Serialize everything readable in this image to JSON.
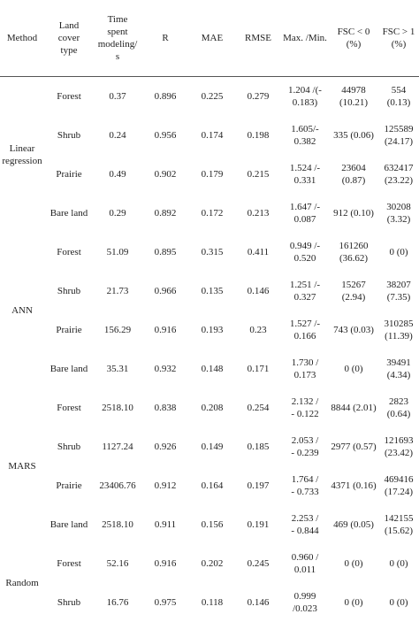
{
  "headers": {
    "method": "Method",
    "land_cover": [
      "Land",
      "cover",
      "type"
    ],
    "time": [
      "Time",
      "spent",
      "modeling/",
      "s"
    ],
    "r": "R",
    "mae": "MAE",
    "rmse": "RMSE",
    "maxmin": "Max. /Min.",
    "fsc_lt0": [
      "FSC < 0",
      "(%)"
    ],
    "fsc_gt1": [
      "FSC > 1",
      "(%)"
    ]
  },
  "groups": [
    {
      "method": [
        "Linear",
        "regression"
      ],
      "rows": [
        {
          "land": "Forest",
          "time": "0.37",
          "r": "0.896",
          "mae": "0.225",
          "rmse": "0.279",
          "maxmin": [
            "1.204 /(-",
            "0.183)"
          ],
          "fsc_lt0": [
            "44978",
            "(10.21)"
          ],
          "fsc_gt1": [
            "554 (0.13)"
          ]
        },
        {
          "land": "Shrub",
          "time": "0.24",
          "r": "0.956",
          "mae": "0.174",
          "rmse": "0.198",
          "maxmin": [
            "1.605/-",
            "0.382"
          ],
          "fsc_lt0": [
            "335 (0.06)"
          ],
          "fsc_gt1": [
            "125589",
            "(24.17)"
          ]
        },
        {
          "land": "Prairie",
          "time": "0.49",
          "r": "0.902",
          "mae": "0.179",
          "rmse": "0.215",
          "maxmin": [
            "1.524 /-",
            "0.331"
          ],
          "fsc_lt0": [
            "23604",
            "(0.87)"
          ],
          "fsc_gt1": [
            "632417",
            "(23.22)"
          ]
        },
        {
          "land": "Bare land",
          "time": "0.29",
          "r": "0.892",
          "mae": "0.172",
          "rmse": "0.213",
          "maxmin": [
            "1.647 /-",
            "0.087"
          ],
          "fsc_lt0": [
            "912 (0.10)"
          ],
          "fsc_gt1": [
            "30208",
            "(3.32)"
          ]
        }
      ]
    },
    {
      "method": [
        "ANN"
      ],
      "rows": [
        {
          "land": "Forest",
          "time": "51.09",
          "r": "0.895",
          "mae": "0.315",
          "rmse": "0.411",
          "maxmin": [
            "0.949 /-",
            "0.520"
          ],
          "fsc_lt0": [
            "161260",
            "(36.62)"
          ],
          "fsc_gt1": [
            "0 (0)"
          ]
        },
        {
          "land": "Shrub",
          "time": "21.73",
          "r": "0.966",
          "mae": "0.135",
          "rmse": "0.146",
          "maxmin": [
            "1.251 /-",
            "0.327"
          ],
          "fsc_lt0": [
            "15267",
            "(2.94)"
          ],
          "fsc_gt1": [
            "38207",
            "(7.35)"
          ]
        },
        {
          "land": "Prairie",
          "time": "156.29",
          "r": "0.916",
          "mae": "0.193",
          "rmse": "0.23",
          "maxmin": [
            "1.527 /-",
            "0.166"
          ],
          "fsc_lt0": [
            "743 (0.03)"
          ],
          "fsc_gt1": [
            "310285",
            "(11.39)"
          ]
        },
        {
          "land": "Bare land",
          "time": "35.31",
          "r": "0.932",
          "mae": "0.148",
          "rmse": "0.171",
          "maxmin": [
            "1.730 /",
            "0.173"
          ],
          "fsc_lt0": [
            "0 (0)"
          ],
          "fsc_gt1": [
            "39491",
            "(4.34)"
          ]
        }
      ]
    },
    {
      "method": [
        "MARS"
      ],
      "rows": [
        {
          "land": "Forest",
          "time": "2518.10",
          "r": "0.838",
          "mae": "0.208",
          "rmse": "0.254",
          "maxmin": [
            "2.132 /",
            "- 0.122"
          ],
          "fsc_lt0": [
            "8844 (2.01)"
          ],
          "fsc_gt1": [
            "2823 (0.64)"
          ]
        },
        {
          "land": "Shrub",
          "time": "1127.24",
          "r": "0.926",
          "mae": "0.149",
          "rmse": "0.185",
          "maxmin": [
            "2.053 /",
            "- 0.239"
          ],
          "fsc_lt0": [
            "2977 (0.57)"
          ],
          "fsc_gt1": [
            "121693",
            "(23.42)"
          ]
        },
        {
          "land": "Prairie",
          "time": "23406.76",
          "r": "0.912",
          "mae": "0.164",
          "rmse": "0.197",
          "maxmin": [
            "1.764 /",
            "- 0.733"
          ],
          "fsc_lt0": [
            "4371 (0.16)"
          ],
          "fsc_gt1": [
            "469416",
            "(17.24)"
          ]
        },
        {
          "land": "Bare land",
          "time": "2518.10",
          "r": "0.911",
          "mae": "0.156",
          "rmse": "0.191",
          "maxmin": [
            "2.253 /",
            "- 0.844"
          ],
          "fsc_lt0": [
            "469 (0.05)"
          ],
          "fsc_gt1": [
            "142155",
            "(15.62)"
          ]
        }
      ]
    },
    {
      "method": [
        "Random"
      ],
      "rows": [
        {
          "land": "Forest",
          "time": "52.16",
          "r": "0.916",
          "mae": "0.202",
          "rmse": "0.245",
          "maxmin": [
            "0.960 /",
            "0.011"
          ],
          "fsc_lt0": [
            "0 (0)"
          ],
          "fsc_gt1": [
            "0 (0)"
          ]
        },
        {
          "land": "Shrub",
          "time": "16.76",
          "r": "0.975",
          "mae": "0.118",
          "rmse": "0.146",
          "maxmin": [
            "0.999",
            "/0.023"
          ],
          "fsc_lt0": [
            "0 (0)"
          ],
          "fsc_gt1": [
            "0 (0)"
          ]
        }
      ]
    }
  ]
}
